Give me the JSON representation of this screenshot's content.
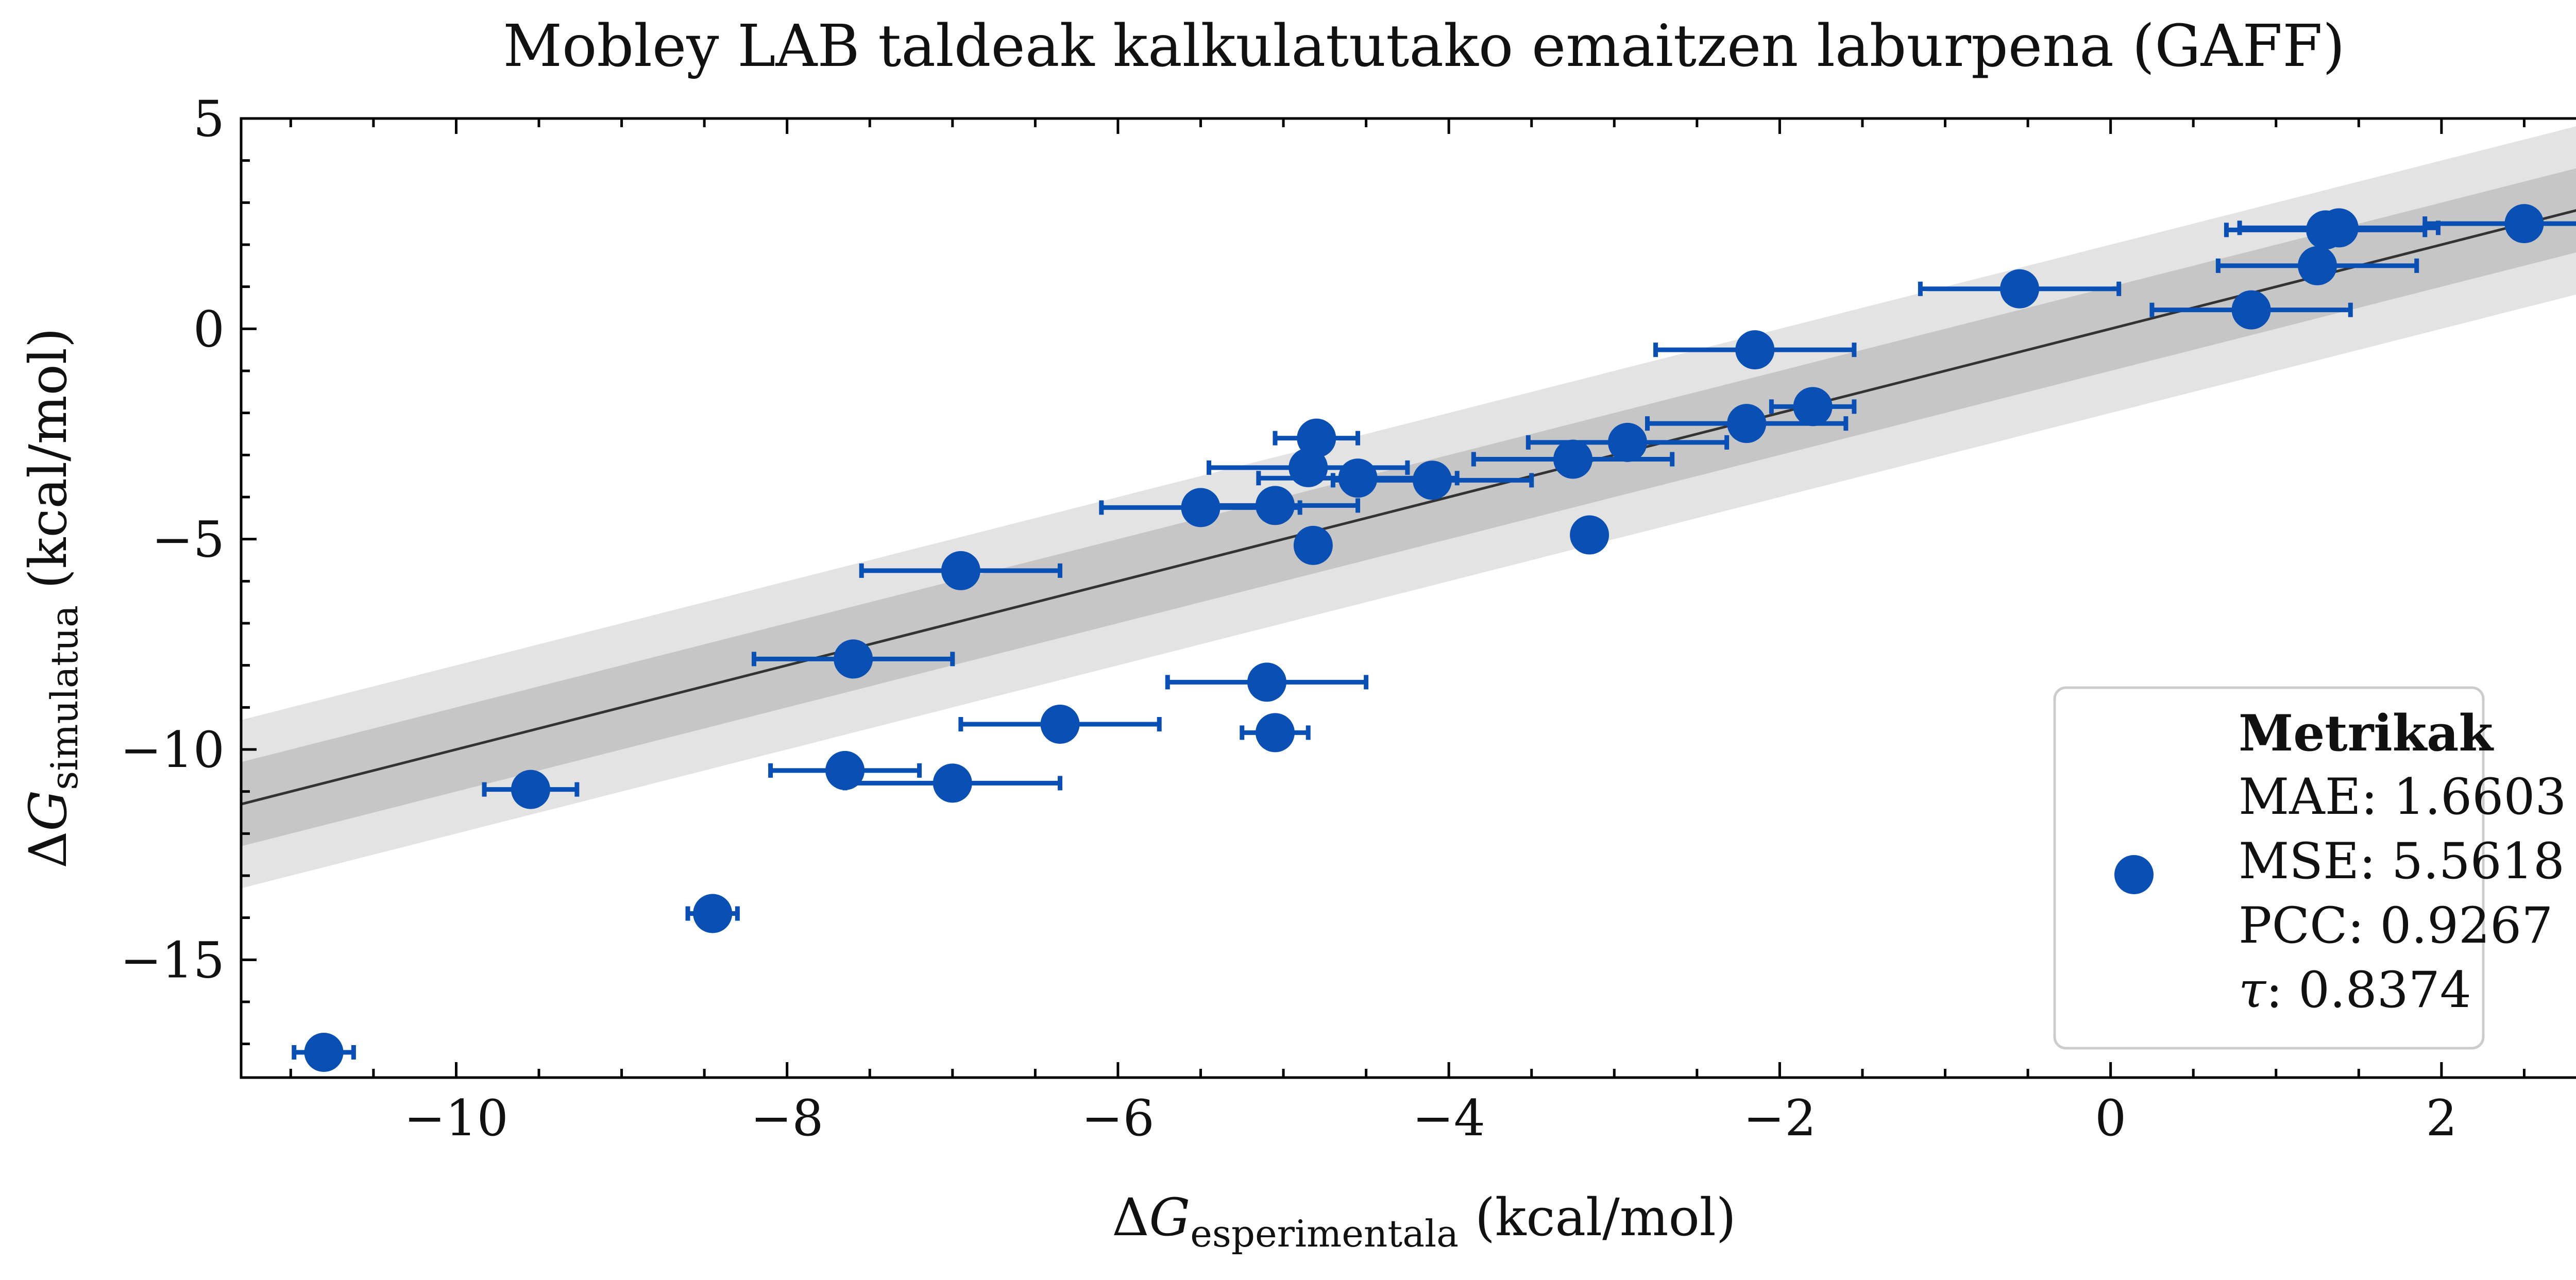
{
  "chart_data": {
    "type": "scatter",
    "title": "Mobley LAB taldeak kalkulatutako emaitzen laburpena (GAFF)",
    "xlabel": {
      "prefix": "Δ",
      "symbol": "G",
      "subscript": "esperimentala",
      "unit": " (kcal/mol)"
    },
    "ylabel": {
      "prefix": "Δ",
      "symbol": "G",
      "subscript": "simulatua",
      "unit": " (kcal/mol)"
    },
    "xlim": [
      -11.3,
      3.0
    ],
    "ylim": [
      -17.8,
      5.0
    ],
    "x_ticks": [
      -10,
      -8,
      -6,
      -4,
      -2,
      0,
      2
    ],
    "x_tick_labels": [
      "−10",
      "−8",
      "−6",
      "−4",
      "−2",
      "0",
      "2"
    ],
    "y_ticks": [
      -15,
      -10,
      -5,
      0,
      5
    ],
    "y_tick_labels": [
      "−15",
      "−10",
      "−5",
      "0",
      "5"
    ],
    "grid": false,
    "reference_line": {
      "slope": 1,
      "intercept": 0,
      "color": "#333333"
    },
    "bands": [
      {
        "halfwidth": 2.0,
        "color": "#e3e3e3"
      },
      {
        "halfwidth": 1.0,
        "color": "#c6c6c6"
      }
    ],
    "marker_color": "#0a4fb4",
    "points": [
      {
        "x": -10.8,
        "y": -17.2,
        "xerr": 0.18,
        "yerr": 0.35
      },
      {
        "x": -9.55,
        "y": -10.95,
        "xerr": 0.28,
        "yerr": 0.35
      },
      {
        "x": -8.45,
        "y": -13.9,
        "xerr": 0.15,
        "yerr": 0.35
      },
      {
        "x": -7.65,
        "y": -10.5,
        "xerr": 0.45,
        "yerr": 0.0
      },
      {
        "x": -7.6,
        "y": -7.85,
        "xerr": 0.6,
        "yerr": 0.0
      },
      {
        "x": -7.0,
        "y": -10.8,
        "xerr": 0.65,
        "yerr": 0.0
      },
      {
        "x": -6.95,
        "y": -5.75,
        "xerr": 0.6,
        "yerr": 0.0
      },
      {
        "x": -6.35,
        "y": -9.4,
        "xerr": 0.6,
        "yerr": 0.0
      },
      {
        "x": -5.5,
        "y": -4.25,
        "xerr": 0.6,
        "yerr": 0.0
      },
      {
        "x": -5.1,
        "y": -8.4,
        "xerr": 0.6,
        "yerr": 0.0
      },
      {
        "x": -5.05,
        "y": -9.6,
        "xerr": 0.2,
        "yerr": 0.3
      },
      {
        "x": -5.05,
        "y": -4.2,
        "xerr": 0.5,
        "yerr": 0.0
      },
      {
        "x": -4.85,
        "y": -3.3,
        "xerr": 0.6,
        "yerr": 0.0
      },
      {
        "x": -4.8,
        "y": -2.6,
        "xerr": 0.25,
        "yerr": 0.0
      },
      {
        "x": -4.82,
        "y": -5.15,
        "xerr": 0.0,
        "yerr": 0.0
      },
      {
        "x": -4.55,
        "y": -3.55,
        "xerr": 0.6,
        "yerr": 0.0
      },
      {
        "x": -4.1,
        "y": -3.6,
        "xerr": 0.6,
        "yerr": 0.0
      },
      {
        "x": -3.25,
        "y": -3.1,
        "xerr": 0.6,
        "yerr": 0.0
      },
      {
        "x": -3.15,
        "y": -4.9,
        "xerr": 0.0,
        "yerr": 0.0
      },
      {
        "x": -2.92,
        "y": -2.7,
        "xerr": 0.6,
        "yerr": 0.0
      },
      {
        "x": -2.2,
        "y": -2.25,
        "xerr": 0.6,
        "yerr": 0.0
      },
      {
        "x": -2.15,
        "y": -0.5,
        "xerr": 0.6,
        "yerr": 0.0
      },
      {
        "x": -1.8,
        "y": -1.85,
        "xerr": 0.25,
        "yerr": 0.0
      },
      {
        "x": -0.55,
        "y": 0.95,
        "xerr": 0.6,
        "yerr": 0.0
      },
      {
        "x": 0.85,
        "y": 0.45,
        "xerr": 0.6,
        "yerr": 0.0
      },
      {
        "x": 1.25,
        "y": 1.5,
        "xerr": 0.6,
        "yerr": 0.0
      },
      {
        "x": 1.3,
        "y": 2.35,
        "xerr": 0.6,
        "yerr": 0.0
      },
      {
        "x": 1.38,
        "y": 2.4,
        "xerr": 0.6,
        "yerr": 0.0
      },
      {
        "x": 2.5,
        "y": 2.5,
        "xerr": 0.6,
        "yerr": 0.0
      }
    ],
    "legend": {
      "placement": "lower-right",
      "title": "Metrikak",
      "lines": [
        "MAE: 1.6603",
        "MSE: 5.5618",
        "PCC: 0.9267"
      ],
      "tau_symbol": "τ",
      "tau_value": ": 0.8374"
    }
  }
}
